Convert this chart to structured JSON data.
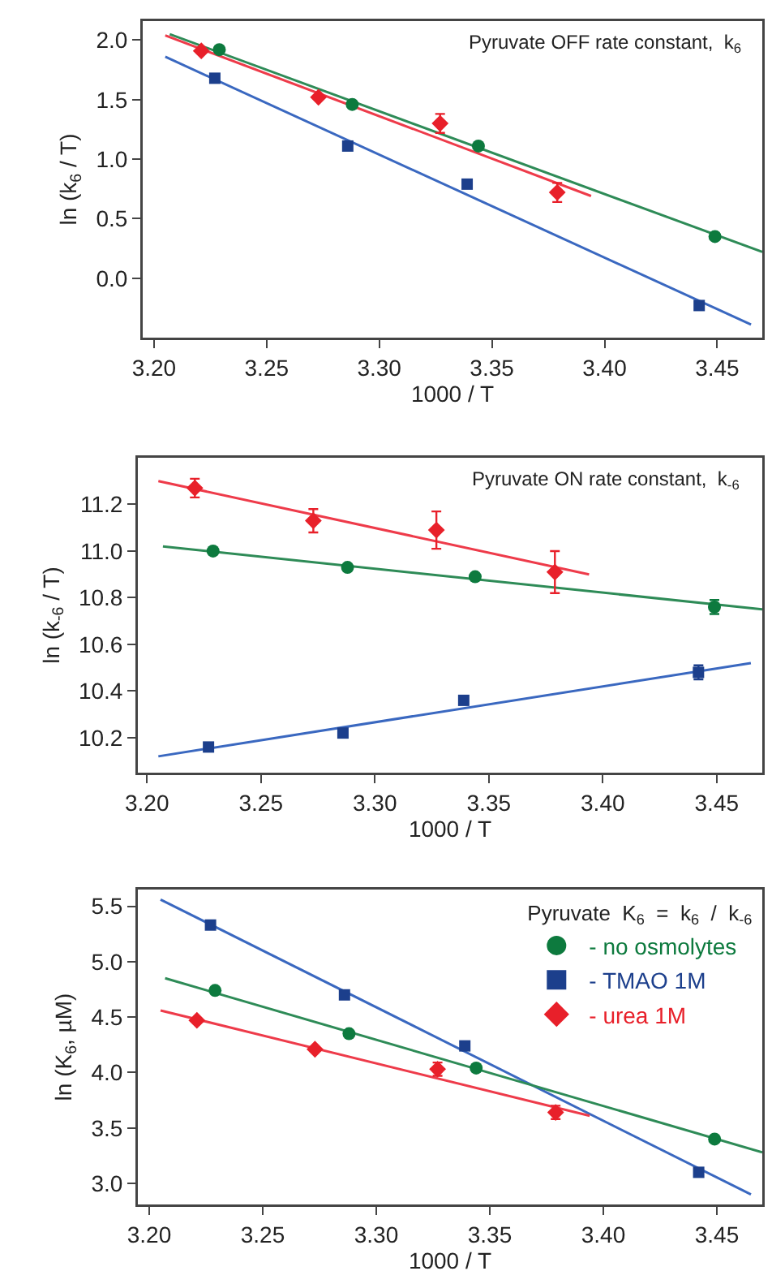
{
  "chart_data": [
    {
      "type": "scatter",
      "xlabel": "1000 / T",
      "ylabel": "ln (k$_{6}$ / T)",
      "annotations": [
        "Pyruvate OFF rate constant,  k$_{6}$"
      ],
      "xlim": [
        3.195,
        3.47
      ],
      "xticks": [
        {
          "value": 3.2,
          "label": "3.20"
        },
        {
          "value": 3.25,
          "label": "3.25"
        },
        {
          "value": 3.3,
          "label": "3.30"
        },
        {
          "value": 3.35,
          "label": "3.35"
        },
        {
          "value": 3.4,
          "label": "3.40"
        },
        {
          "value": 3.45,
          "label": "3.45"
        }
      ],
      "ylim": [
        -0.5,
        2.16
      ],
      "yticks": [
        {
          "value": 0,
          "label": "0.0"
        },
        {
          "value": 0.5,
          "label": "0.5"
        },
        {
          "value": 1,
          "label": "1.0"
        },
        {
          "value": 1.5,
          "label": "1.5"
        },
        {
          "value": 2,
          "label": "2.0"
        }
      ],
      "grid": false,
      "legend": false,
      "series": [
        {
          "type": "line",
          "color": "#2e8b57",
          "x": [
            3.207,
            3.47
          ],
          "values": [
            2.05,
            0.22
          ]
        },
        {
          "type": "line",
          "color": "#ee3b4a",
          "x": [
            3.205,
            3.394
          ],
          "values": [
            2.04,
            0.69
          ]
        },
        {
          "type": "line",
          "color": "#3a68c0",
          "x": [
            3.205,
            3.465
          ],
          "values": [
            1.86,
            -0.39
          ]
        },
        {
          "marker": "circle",
          "color": "#0d7a3e",
          "x": [
            3.229,
            3.288,
            3.344,
            3.449
          ],
          "values": [
            1.92,
            1.46,
            1.11,
            0.35
          ]
        },
        {
          "marker": "square",
          "color": "#1c3f8c",
          "x": [
            3.227,
            3.286,
            3.339,
            3.442
          ],
          "values": [
            1.68,
            1.11,
            0.79,
            -0.23
          ]
        },
        {
          "marker": "diamond",
          "color": "#e8202a",
          "x": [
            3.221,
            3.273,
            3.327,
            3.379
          ],
          "values": [
            1.91,
            1.52,
            1.3,
            0.72
          ],
          "errors": [
            null,
            null,
            0.08,
            0.08
          ]
        }
      ]
    },
    {
      "type": "scatter",
      "xlabel": "1000 / T",
      "ylabel": "ln (k$_{-6}$ / T)",
      "annotations": [
        "Pyruvate ON rate constant,  k$_{-6}$"
      ],
      "xlim": [
        3.196,
        3.47
      ],
      "xticks": [
        {
          "value": 3.2,
          "label": "3.20"
        },
        {
          "value": 3.25,
          "label": "3.25"
        },
        {
          "value": 3.3,
          "label": "3.30"
        },
        {
          "value": 3.35,
          "label": "3.35"
        },
        {
          "value": 3.4,
          "label": "3.40"
        },
        {
          "value": 3.45,
          "label": "3.45"
        }
      ],
      "ylim": [
        10.05,
        11.4
      ],
      "yticks": [
        10.2,
        10.4,
        10.6,
        10.8,
        {
          "value": 11,
          "label": "11.0"
        },
        11.2
      ],
      "grid": false,
      "legend": false,
      "series": [
        {
          "type": "line",
          "color": "#ee3b4a",
          "x": [
            3.205,
            3.394
          ],
          "values": [
            11.3,
            10.9
          ]
        },
        {
          "type": "line",
          "color": "#2e8b57",
          "x": [
            3.207,
            3.47
          ],
          "values": [
            11.02,
            10.75
          ]
        },
        {
          "type": "line",
          "color": "#3a68c0",
          "x": [
            3.205,
            3.465
          ],
          "values": [
            10.12,
            10.52
          ]
        },
        {
          "marker": "diamond",
          "color": "#e8202a",
          "x": [
            3.221,
            3.273,
            3.327,
            3.379
          ],
          "values": [
            11.27,
            11.13,
            11.09,
            10.91
          ],
          "errors": [
            0.04,
            0.05,
            0.08,
            0.09
          ]
        },
        {
          "marker": "circle",
          "color": "#0d7a3e",
          "x": [
            3.229,
            3.288,
            3.344,
            3.449
          ],
          "values": [
            11.0,
            10.93,
            10.89,
            10.76
          ],
          "errors": [
            null,
            null,
            null,
            0.03
          ]
        },
        {
          "marker": "square",
          "color": "#1c3f8c",
          "x": [
            3.227,
            3.286,
            3.339,
            3.442
          ],
          "values": [
            10.16,
            10.22,
            10.36,
            10.48
          ],
          "errors": [
            null,
            null,
            null,
            0.03
          ]
        }
      ]
    },
    {
      "type": "scatter",
      "xlabel": "1000 / T",
      "ylabel": "ln (K$_{6}$, µM)",
      "legend_title": "Pyruvate  K$_{6}$  =  k$_{6}$  /  k$_{-6}$",
      "xlim": [
        3.195,
        3.47
      ],
      "xticks": [
        {
          "value": 3.2,
          "label": "3.20"
        },
        {
          "value": 3.25,
          "label": "3.25"
        },
        {
          "value": 3.3,
          "label": "3.30"
        },
        {
          "value": 3.35,
          "label": "3.35"
        },
        {
          "value": 3.4,
          "label": "3.40"
        },
        {
          "value": 3.45,
          "label": "3.45"
        }
      ],
      "ylim": [
        2.81,
        5.65
      ],
      "yticks": [
        {
          "value": 3,
          "label": "3.0"
        },
        3.5,
        {
          "value": 4,
          "label": "4.0"
        },
        4.5,
        {
          "value": 5,
          "label": "5.0"
        },
        5.5
      ],
      "grid": false,
      "legend": "top right",
      "series": [
        {
          "type": "line",
          "color": "#3a68c0",
          "x": [
            3.205,
            3.465
          ],
          "values": [
            5.56,
            2.9
          ]
        },
        {
          "type": "line",
          "color": "#2e8b57",
          "x": [
            3.207,
            3.47
          ],
          "values": [
            4.85,
            3.28
          ]
        },
        {
          "type": "line",
          "color": "#ee3b4a",
          "x": [
            3.205,
            3.394
          ],
          "values": [
            4.56,
            3.61
          ]
        },
        {
          "name": "- no osmolytes",
          "marker": "circle",
          "color": "#0d7a3e",
          "x": [
            3.229,
            3.288,
            3.344,
            3.449
          ],
          "values": [
            4.74,
            4.35,
            4.04,
            3.4
          ]
        },
        {
          "name": "- TMAO 1M",
          "marker": "square",
          "color": "#1c3f8c",
          "x": [
            3.227,
            3.286,
            3.339,
            3.442
          ],
          "values": [
            5.33,
            4.7,
            4.24,
            3.1
          ]
        },
        {
          "name": "- urea 1M",
          "marker": "diamond",
          "color": "#e8202a",
          "x": [
            3.221,
            3.273,
            3.327,
            3.379
          ],
          "values": [
            4.47,
            4.21,
            4.03,
            3.64
          ],
          "errors": [
            null,
            null,
            0.06,
            0.06
          ]
        }
      ]
    }
  ]
}
